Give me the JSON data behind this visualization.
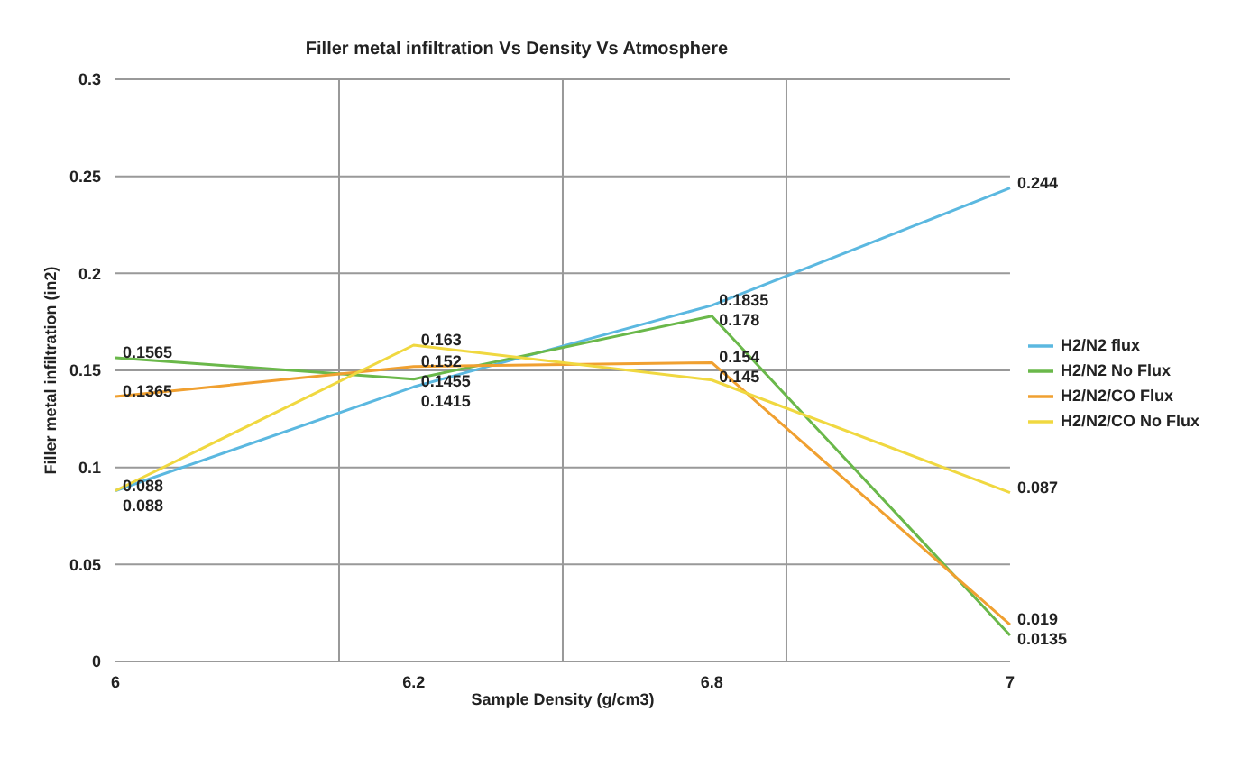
{
  "chart_data": {
    "type": "line",
    "title": "Filler metal infiltration Vs Density Vs Atmosphere",
    "xlabel": "Sample Density (g/cm3)",
    "ylabel": "Filler metal infiltration (in2)",
    "categories": [
      "6",
      "6.2",
      "6.8",
      "7"
    ],
    "series": [
      {
        "name": "H2/N2 flux",
        "color": "#5bb8e0",
        "values": [
          0.088,
          0.1415,
          0.1835,
          0.244
        ]
      },
      {
        "name": "H2/N2 No Flux",
        "color": "#6ab84a",
        "values": [
          0.1565,
          0.1455,
          0.178,
          0.0135
        ]
      },
      {
        "name": "H2/N2/CO Flux",
        "color": "#f0a030",
        "values": [
          0.1365,
          0.152,
          0.154,
          0.019
        ]
      },
      {
        "name": "H2/N2/CO No Flux",
        "color": "#f0d840",
        "values": [
          0.088,
          0.163,
          0.145,
          0.087
        ]
      }
    ],
    "ylim": [
      0,
      0.3
    ],
    "yticks": [
      0,
      0.05,
      0.1,
      0.15,
      0.2,
      0.25,
      0.3
    ],
    "grid": true,
    "legend": "right",
    "data_labels": true,
    "marker": "none",
    "line_style": "solid"
  }
}
